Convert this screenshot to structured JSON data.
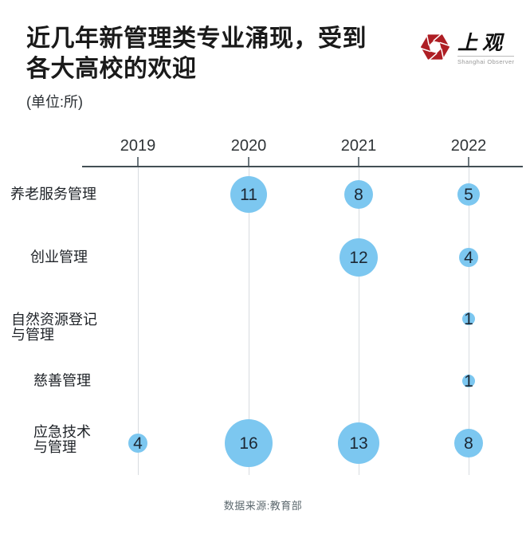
{
  "header": {
    "title_line1": "近几年新管理类专业涌现，受到",
    "title_line2": "各大高校的欢迎",
    "subtitle": "(单位:所)",
    "logo": {
      "name": "上观",
      "subname": "Shanghai Observer",
      "icon": "aperture-hexagon-icon",
      "brand_color": "#ae1e24"
    }
  },
  "chart_data": {
    "type": "bubble",
    "title": "近几年新管理类专业涌现，受到各大高校的欢迎",
    "unit_note": "(单位:所)",
    "x_categories": [
      "2019",
      "2020",
      "2021",
      "2022"
    ],
    "rows": [
      {
        "label": "养老服务管理",
        "values": [
          null,
          11,
          8,
          5
        ]
      },
      {
        "label": "创业管理",
        "values": [
          null,
          null,
          12,
          4
        ]
      },
      {
        "label": "自然资源登记\n与管理",
        "values": [
          null,
          null,
          null,
          1
        ]
      },
      {
        "label": "慈善管理",
        "values": [
          null,
          null,
          null,
          1
        ]
      },
      {
        "label": "应急技术\n与管理",
        "values": [
          4,
          16,
          13,
          8
        ]
      }
    ],
    "bubble_color": "#7cc7f0",
    "value_text_color": "#1c2733",
    "grid": "vertical-light-columns",
    "legend": "none",
    "size_encoding": "bubble area ~ value"
  },
  "footer": {
    "source": "数据来源:教育部"
  }
}
